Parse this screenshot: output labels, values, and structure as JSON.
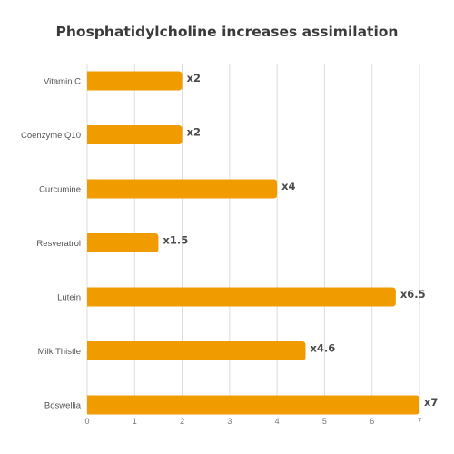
{
  "chart_data": {
    "type": "bar",
    "orientation": "horizontal",
    "title": "Phosphatidylcholine increases assimilation",
    "categories": [
      "Vitamin C",
      "Coenzyme Q10",
      "Curcumine",
      "Resveratrol",
      "Lutein",
      "Milk Thistle",
      "Boswellia"
    ],
    "values": [
      2,
      2,
      4,
      1.5,
      6.5,
      4.6,
      7
    ],
    "data_labels": [
      "x2",
      "x2",
      "x4",
      "x1.5",
      "x6.5",
      "x4.6",
      "x7"
    ],
    "xlim": [
      0,
      7
    ],
    "xticks": [
      "0",
      "1",
      "2",
      "3",
      "4",
      "5",
      "6",
      "7"
    ],
    "grid": "vertical",
    "bar_color": "#F09B00"
  }
}
